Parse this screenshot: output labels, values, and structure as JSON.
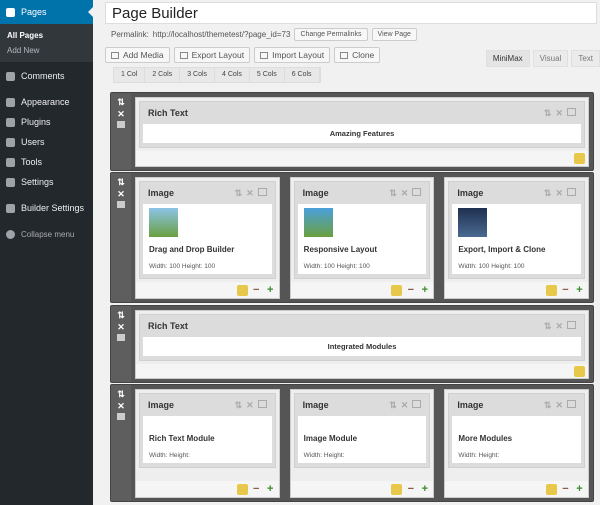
{
  "sidebar": {
    "pages": "Pages",
    "all_pages": "All Pages",
    "add_new": "Add New",
    "items": [
      "Comments",
      "Appearance",
      "Plugins",
      "Users",
      "Tools",
      "Settings",
      "Builder Settings",
      "Collapse menu"
    ]
  },
  "title": "Page Builder",
  "permalink": {
    "label": "Permalink:",
    "url": "http://localhost/themetest/?page_id=73",
    "change": "Change Permalinks",
    "view": "View Page"
  },
  "toolbar": {
    "add_media": "Add Media",
    "export": "Export Layout",
    "import": "Import Layout",
    "clone": "Clone"
  },
  "editor_tabs": [
    "MiniMax",
    "Visual",
    "Text"
  ],
  "col_buttons": [
    "1 Col",
    "2 Cols",
    "3 Cols",
    "4 Cols",
    "5 Cols",
    "6 Cols"
  ],
  "rows": [
    {
      "modules": [
        {
          "type": "Rich Text",
          "text": "Amazing Features"
        }
      ]
    },
    {
      "modules": [
        {
          "type": "Image",
          "title": "Drag and Drop Builder",
          "size": "Width: 100 Height: 100",
          "thumb": "#8cc4e8"
        },
        {
          "type": "Image",
          "title": "Responsive Layout",
          "size": "Width: 100 Height: 100",
          "thumb": "#4aa0dc"
        },
        {
          "type": "Image",
          "title": "Export, Import & Clone",
          "size": "Width: 100 Height: 100",
          "thumb": "#1e3050"
        }
      ]
    },
    {
      "modules": [
        {
          "type": "Rich Text",
          "text": "Integrated Modules"
        }
      ]
    },
    {
      "modules": [
        {
          "type": "Image",
          "title": "Rich Text Module",
          "size": "Width: Height:"
        },
        {
          "type": "Image",
          "title": "Image Module",
          "size": "Width: Height:"
        },
        {
          "type": "Image",
          "title": "More Modules",
          "size": "Width: Height:"
        }
      ]
    }
  ],
  "colors": {
    "sidebar": "#23282d",
    "active": "#0073aa"
  }
}
